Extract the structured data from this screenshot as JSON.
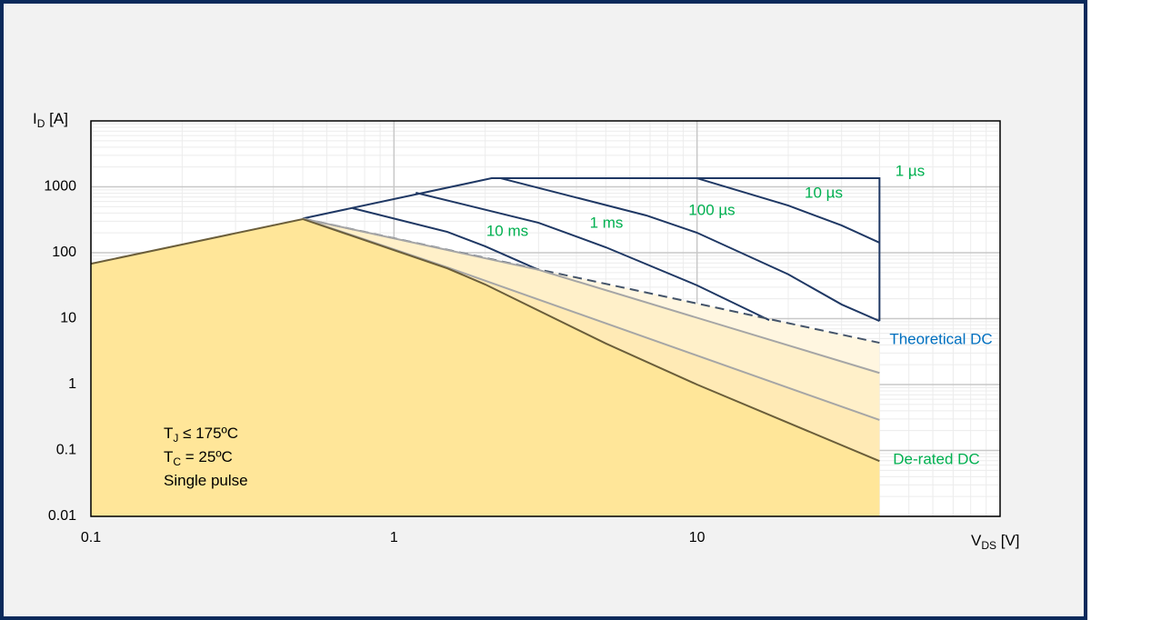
{
  "chart_data": {
    "type": "line",
    "log_x": true,
    "log_y": true,
    "xlim": [
      0.1,
      100
    ],
    "ylim": [
      0.01,
      10000
    ],
    "xticks": [
      0.1,
      1,
      10
    ],
    "yticks": [
      0.01,
      0.1,
      1,
      10,
      100,
      1000
    ],
    "grid": true,
    "minor_grid": true,
    "y_label": {
      "main": "I",
      "sub": "D",
      "rest": " [A]"
    },
    "x_label": {
      "main": "V",
      "sub": "DS",
      "rest": " [V]"
    },
    "conditions": [
      {
        "main": "T",
        "sub": "J",
        "rest": " ≤ 175ºC"
      },
      {
        "main": "T",
        "sub": "C",
        "rest": " = 25ºC"
      },
      {
        "main": "Single pulse"
      }
    ],
    "series": [
      {
        "name": "1 µs",
        "color": "#1f3864",
        "label_color": "#00b050",
        "x": [
          0.5,
          2.1,
          40,
          40
        ],
        "values": [
          330,
          1350,
          1350,
          9.2
        ]
      },
      {
        "name": "10 µs",
        "color": "#1f3864",
        "label_color": "#00b050",
        "x": [
          10,
          20,
          30,
          40
        ],
        "values": [
          1350,
          520,
          260,
          142
        ]
      },
      {
        "name": "100 µs",
        "color": "#1f3864",
        "label_color": "#00b050",
        "x": [
          2.25,
          6.8,
          10,
          20,
          30,
          40
        ],
        "values": [
          1350,
          368,
          201,
          47,
          16.4,
          9.2
        ]
      },
      {
        "name": "1 ms",
        "color": "#1f3864",
        "label_color": "#00b050",
        "x": [
          1.18,
          3,
          5,
          10,
          17.3
        ],
        "values": [
          813,
          285,
          121,
          32,
          9.5
        ]
      },
      {
        "name": "10 ms",
        "color": "#1f3864",
        "label_color": "#00b050",
        "x": [
          0.73,
          1.5,
          2,
          3
        ],
        "values": [
          474,
          207,
          125,
          55
        ]
      },
      {
        "name": "Theoretical DC",
        "color": "#44546a",
        "label_color": "#0070c0",
        "dash": true,
        "fill": "#fff6e0",
        "x": [
          0.5,
          40
        ],
        "values": [
          330,
          4.3
        ]
      },
      {
        "color": "#a6a6a6",
        "fill": "#fff0c9",
        "x": [
          0.5,
          3,
          40
        ],
        "values": [
          330,
          55,
          1.5
        ]
      },
      {
        "color": "#a6a6a6",
        "fill": "#ffeab5",
        "x": [
          0.5,
          1.5,
          40
        ],
        "values": [
          330,
          60,
          0.29
        ]
      },
      {
        "name": "De-rated DC",
        "color": "#6b5e3a",
        "label_color": "#00b050",
        "fill": "#ffe699",
        "x": [
          0.1,
          0.5,
          1.5,
          2,
          5,
          10,
          40
        ],
        "values": [
          68,
          324,
          58,
          33,
          4.2,
          1,
          0.069
        ]
      }
    ]
  }
}
